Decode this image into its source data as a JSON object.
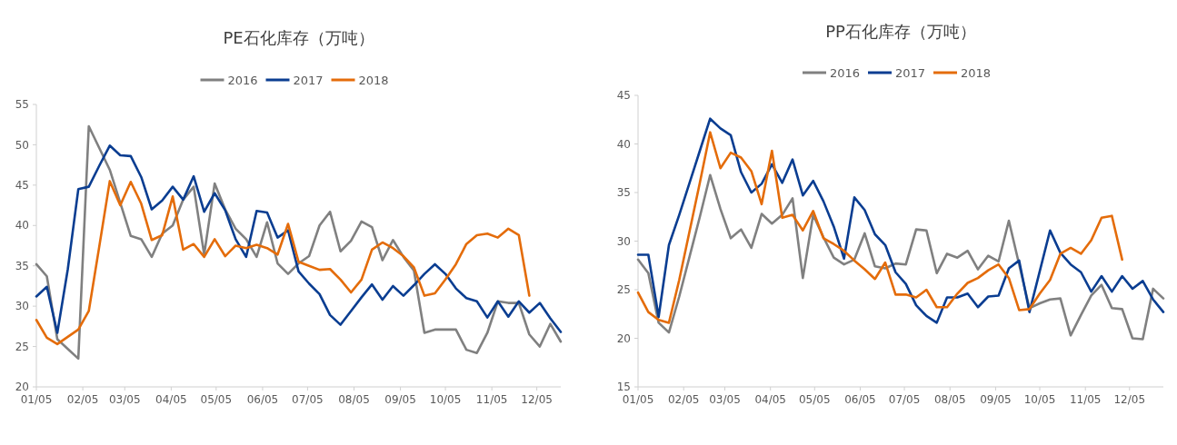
{
  "chart_data": [
    {
      "type": "line",
      "title": "PE石化库存（万吨）",
      "legend": "top",
      "grid": false,
      "x": [
        "--01-05",
        "--01-12",
        "--01-19",
        "--01-26",
        "--02-02",
        "--02-09",
        "--02-16",
        "--02-23",
        "--03-02",
        "--03-09",
        "--03-16",
        "--03-23",
        "--03-30",
        "--04-06",
        "--04-13",
        "--04-20",
        "--04-27",
        "--05-04",
        "--05-11",
        "--05-18",
        "--05-25",
        "--06-01",
        "--06-08",
        "--06-15",
        "--06-22",
        "--06-29",
        "--07-06",
        "--07-13",
        "--07-20",
        "--07-27",
        "--08-03",
        "--08-10",
        "--08-17",
        "--08-24",
        "--08-31",
        "--09-07",
        "--09-14",
        "--09-21",
        "--09-28",
        "--10-05",
        "--10-12",
        "--10-19",
        "--10-26",
        "--11-02",
        "--11-09",
        "--11-16",
        "--11-23",
        "--11-30",
        "--12-07",
        "--12-14",
        "--12-21"
      ],
      "xlim": [
        "--01-05",
        "--12-21"
      ],
      "xticks": [
        {
          "value": "--01-05",
          "label": "01/05"
        },
        {
          "value": "--02-05",
          "label": "02/05"
        },
        {
          "value": "--03-05",
          "label": "03/05"
        },
        {
          "value": "--04-05",
          "label": "04/05"
        },
        {
          "value": "--05-05",
          "label": "05/05"
        },
        {
          "value": "--06-05",
          "label": "06/05"
        },
        {
          "value": "--07-05",
          "label": "07/05"
        },
        {
          "value": "--08-05",
          "label": "08/05"
        },
        {
          "value": "--09-05",
          "label": "09/05"
        },
        {
          "value": "--10-05",
          "label": "10/05"
        },
        {
          "value": "--11-05",
          "label": "11/05"
        },
        {
          "value": "--12-05",
          "label": "12/05"
        }
      ],
      "ylim": [
        20,
        55
      ],
      "yticks": [
        20,
        25,
        30,
        35,
        40,
        45,
        50,
        55
      ],
      "series": [
        {
          "name": "2016",
          "color": "#808080",
          "values": [
            35.2,
            33.7,
            25.9,
            24.7,
            23.5,
            52.3,
            49.6,
            46.9,
            42.8,
            38.7,
            38.3,
            36.1,
            39.0,
            40.0,
            43.2,
            44.8,
            36.4,
            45.2,
            42.0,
            39.6,
            38.3,
            36.1,
            40.4,
            35.3,
            34.0,
            35.3,
            36.2,
            40.0,
            41.7,
            36.8,
            38.1,
            40.5,
            39.8,
            35.7,
            38.2,
            36.1,
            34.4,
            26.7,
            27.1,
            27.1,
            27.1,
            24.6,
            24.2,
            26.7,
            30.6,
            30.4,
            30.4,
            26.5,
            25.0,
            27.8,
            25.6
          ]
        },
        {
          "name": "2017",
          "color": "#0a3d91",
          "values": [
            31.2,
            32.4,
            26.7,
            34.6,
            44.5,
            44.8,
            47.4,
            49.9,
            48.7,
            48.6,
            46.0,
            42.0,
            43.1,
            44.8,
            43.2,
            46.1,
            41.7,
            44.0,
            41.9,
            38.3,
            36.1,
            41.8,
            41.6,
            38.5,
            39.4,
            34.3,
            32.8,
            31.5,
            28.9,
            27.7,
            29.4,
            31.1,
            32.7,
            30.8,
            32.5,
            31.3,
            32.6,
            34.0,
            35.2,
            34.0,
            32.2,
            31.0,
            30.6,
            28.6,
            30.6,
            28.7,
            30.6,
            29.2,
            30.4,
            28.5,
            26.8
          ]
        },
        {
          "name": "2018",
          "color": "#e46c0a",
          "values": [
            28.3,
            26.1,
            25.3,
            26.2,
            27.1,
            29.4,
            37.4,
            45.5,
            42.5,
            45.4,
            42.7,
            38.2,
            38.8,
            43.6,
            37.0,
            37.7,
            36.1,
            38.3,
            36.2,
            37.5,
            37.2,
            37.6,
            37.2,
            36.4,
            40.2,
            35.5,
            35.0,
            34.5,
            34.6,
            33.3,
            31.7,
            33.3,
            37.0,
            37.9,
            37.2,
            36.2,
            34.8,
            31.3,
            31.6,
            33.3,
            35.2,
            37.7,
            38.8,
            39.0,
            38.5,
            39.6,
            38.8,
            31.3,
            null,
            null,
            null
          ]
        }
      ]
    },
    {
      "type": "line",
      "title": "PP石化库存（万吨）",
      "legend": "top",
      "grid": false,
      "x": [
        "--01-05",
        "--01-12",
        "--01-19",
        "--01-26",
        "--02-02",
        "--02-09",
        "--02-16",
        "--02-23",
        "--03-02",
        "--03-09",
        "--03-16",
        "--03-23",
        "--03-30",
        "--04-06",
        "--04-13",
        "--04-20",
        "--04-27",
        "--05-04",
        "--05-11",
        "--05-18",
        "--05-25",
        "--06-01",
        "--06-08",
        "--06-15",
        "--06-22",
        "--06-29",
        "--07-06",
        "--07-13",
        "--07-20",
        "--07-27",
        "--08-03",
        "--08-10",
        "--08-17",
        "--08-24",
        "--08-31",
        "--09-07",
        "--09-14",
        "--09-21",
        "--09-28",
        "--10-05",
        "--10-12",
        "--10-19",
        "--10-26",
        "--11-02",
        "--11-09",
        "--11-16",
        "--11-23",
        "--11-30",
        "--12-07",
        "--12-14",
        "--12-21",
        "--12-28"
      ],
      "xlim": [
        "--01-05",
        "--12-28"
      ],
      "xticks": [
        {
          "value": "--01-05",
          "label": "01/05"
        },
        {
          "value": "--02-05",
          "label": "02/05"
        },
        {
          "value": "--03-05",
          "label": "03/05"
        },
        {
          "value": "--04-05",
          "label": "04/05"
        },
        {
          "value": "--05-05",
          "label": "05/05"
        },
        {
          "value": "--06-05",
          "label": "06/05"
        },
        {
          "value": "--07-05",
          "label": "07/05"
        },
        {
          "value": "--08-05",
          "label": "08/05"
        },
        {
          "value": "--09-05",
          "label": "09/05"
        },
        {
          "value": "--10-05",
          "label": "10/05"
        },
        {
          "value": "--11-05",
          "label": "11/05"
        },
        {
          "value": "--12-05",
          "label": "12/05"
        }
      ],
      "ylim": [
        15,
        45
      ],
      "yticks": [
        15,
        20,
        25,
        30,
        35,
        40,
        45
      ],
      "series": [
        {
          "name": "2016",
          "color": "#808080",
          "values": [
            28.1,
            26.7,
            21.6,
            20.6,
            24.3,
            28.4,
            32.5,
            36.8,
            33.3,
            30.3,
            31.2,
            29.3,
            32.8,
            31.8,
            32.7,
            34.4,
            26.2,
            32.7,
            30.4,
            28.3,
            27.6,
            28.1,
            30.8,
            27.4,
            27.2,
            27.7,
            27.6,
            31.2,
            31.1,
            26.7,
            28.7,
            28.3,
            29.0,
            27.1,
            28.5,
            27.9,
            32.1,
            27.6,
            23.1,
            23.6,
            24.0,
            24.1,
            20.3,
            22.4,
            24.4,
            25.5,
            23.1,
            23.0,
            20.0,
            19.9,
            25.1,
            24.1
          ]
        },
        {
          "name": "2017",
          "color": "#0a3d91",
          "values": [
            28.6,
            28.6,
            22.2,
            29.6,
            32.7,
            36.0,
            39.3,
            42.6,
            41.6,
            40.9,
            37.1,
            35.0,
            35.9,
            37.9,
            36.0,
            38.4,
            34.7,
            36.2,
            34.1,
            31.5,
            28.2,
            34.5,
            33.2,
            30.7,
            29.6,
            26.8,
            25.6,
            23.4,
            22.3,
            21.6,
            24.2,
            24.2,
            24.6,
            23.2,
            24.3,
            24.4,
            27.2,
            28.0,
            22.7,
            26.9,
            31.1,
            28.8,
            27.6,
            26.8,
            24.8,
            26.4,
            24.8,
            26.4,
            25.1,
            25.9,
            24.0,
            22.7
          ]
        },
        {
          "name": "2018",
          "color": "#e46c0a",
          "values": [
            24.7,
            22.7,
            21.9,
            21.6,
            26.0,
            31.0,
            36.0,
            41.2,
            37.5,
            39.1,
            38.6,
            37.2,
            33.8,
            39.3,
            32.4,
            32.7,
            31.1,
            33.1,
            30.3,
            29.7,
            29.0,
            28.0,
            27.1,
            26.1,
            27.8,
            24.5,
            24.5,
            24.2,
            25.0,
            23.2,
            23.2,
            24.6,
            25.7,
            26.2,
            27.0,
            27.6,
            26.2,
            22.9,
            23.0,
            24.6,
            26.0,
            28.7,
            29.3,
            28.7,
            30.1,
            32.4,
            32.6,
            28.1,
            null,
            null,
            null,
            null
          ]
        }
      ]
    }
  ]
}
